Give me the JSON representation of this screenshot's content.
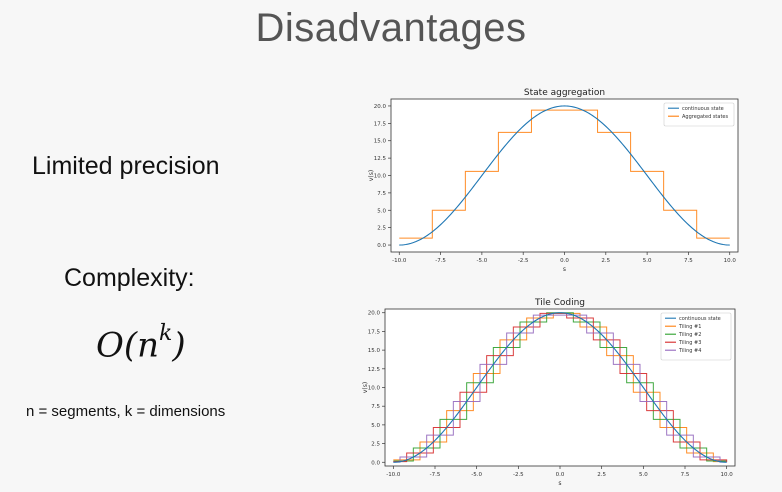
{
  "slide": {
    "title": "Disadvantages",
    "point1": "Limited precision",
    "point2": "Complexity:",
    "formula_main": "O(n",
    "formula_sup": "k",
    "formula_end": ")",
    "note": "n = segments, k = dimensions"
  },
  "chart_data": [
    {
      "type": "line",
      "title": "State aggregation",
      "xlabel": "s",
      "ylabel": "v(s)",
      "xlim": [
        -10.5,
        10.5
      ],
      "ylim": [
        -1,
        21
      ],
      "xticks": [
        "-10.0",
        "-7.5",
        "-5.0",
        "-2.5",
        "0.0",
        "2.5",
        "5.0",
        "7.5",
        "10.0"
      ],
      "yticks": [
        "0.0",
        "2.5",
        "5.0",
        "7.5",
        "10.0",
        "12.5",
        "15.0",
        "17.5",
        "20.0"
      ],
      "legend_position": "top-right",
      "series": [
        {
          "name": "continuous state",
          "color": "#1f77b4",
          "kind": "curve",
          "function": "10*(1+cos(pi*s/10))"
        },
        {
          "name": "Aggregated states",
          "color": "#ff7f0e",
          "kind": "step",
          "edges": [
            -10,
            -8,
            -6,
            -4,
            -2,
            2,
            4,
            6,
            8,
            10
          ],
          "values": [
            1.0,
            5.0,
            10.6,
            16.2,
            19.4,
            16.2,
            10.6,
            5.0,
            1.0
          ]
        }
      ]
    },
    {
      "type": "line",
      "title": "Tile Coding",
      "xlabel": "s",
      "ylabel": "v(s)",
      "xlim": [
        -10.5,
        10.5
      ],
      "ylim": [
        -0.5,
        20.5
      ],
      "xticks": [
        "-10.0",
        "-7.5",
        "-5.0",
        "-2.5",
        "0.0",
        "2.5",
        "5.0",
        "7.5",
        "10.0"
      ],
      "yticks": [
        "0.0",
        "2.5",
        "5.0",
        "7.5",
        "10.0",
        "12.5",
        "15.0",
        "17.5",
        "20.0"
      ],
      "legend_position": "top-right",
      "series": [
        {
          "name": "continuous state",
          "color": "#1f77b4",
          "kind": "curve",
          "function": "10*(1+cos(pi*s/10))"
        },
        {
          "name": "Tiling #1",
          "color": "#ff7f0e",
          "kind": "step",
          "tile_width": 1.6,
          "offset": 0.0
        },
        {
          "name": "Tiling #2",
          "color": "#2ca02c",
          "kind": "step",
          "tile_width": 1.6,
          "offset": 0.4
        },
        {
          "name": "Tiling #3",
          "color": "#d62728",
          "kind": "step",
          "tile_width": 1.6,
          "offset": 0.8
        },
        {
          "name": "Tiling #4",
          "color": "#9467bd",
          "kind": "step",
          "tile_width": 1.6,
          "offset": 1.2
        }
      ]
    }
  ]
}
